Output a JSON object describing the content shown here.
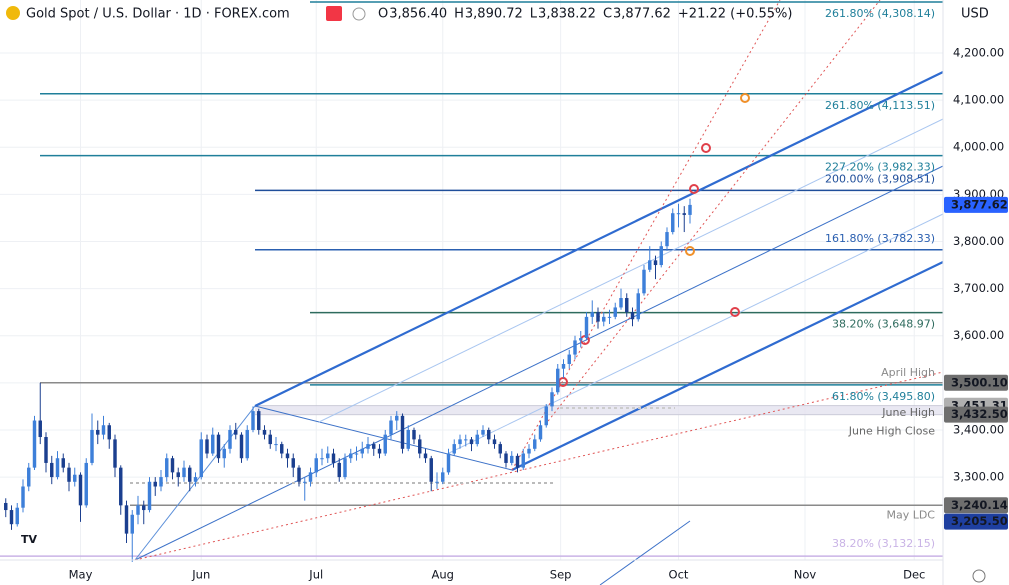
{
  "chart_data": {
    "type": "candlestick",
    "title": "Gold Spot / U.S. Dollar · 1D · FOREX.com",
    "currency": "USD",
    "ohlc_header": [
      {
        "key": "O",
        "value": "3,856.40"
      },
      {
        "key": "H",
        "value": "3,890.72"
      },
      {
        "key": "L",
        "value": "3,838.22"
      },
      {
        "key": "C",
        "value": "3,877.62"
      }
    ],
    "change": "+21.22 (+0.55%)",
    "up_color": "#3d7fd9",
    "down_color": "#1b3f8f",
    "ylim": [
      3124,
      4312.5
    ],
    "xlim": [
      -1,
      163
    ],
    "yticks": [
      {
        "value": 3300,
        "label": "3,300.00"
      },
      {
        "value": 3400,
        "label": "3,400.00"
      },
      {
        "value": 3500,
        "label": "3,500.00"
      },
      {
        "value": 3600,
        "label": "3,600.00"
      },
      {
        "value": 3700,
        "label": "3,700.00"
      },
      {
        "value": 3800,
        "label": "3,800.00"
      },
      {
        "value": 3900,
        "label": "3,900.00"
      },
      {
        "value": 4000,
        "label": "4,000.00"
      },
      {
        "value": 4100,
        "label": "4,100.00"
      },
      {
        "value": 4200,
        "label": "4,200.00"
      }
    ],
    "xticks": [
      {
        "value": 13,
        "label": "May"
      },
      {
        "value": 34,
        "label": "Jun"
      },
      {
        "value": 54,
        "label": "Jul"
      },
      {
        "value": 76,
        "label": "Aug"
      },
      {
        "value": 96.5,
        "label": "Sep"
      },
      {
        "value": 117,
        "label": "Oct"
      },
      {
        "value": 139,
        "label": "Nov"
      },
      {
        "value": 158,
        "label": "Dec"
      }
    ],
    "grid": true,
    "levels": [
      {
        "value": 4308.14,
        "label": "261.80% (4,308.14)",
        "color": "#1f7f9a"
      },
      {
        "value": 4113.51,
        "label": "261.80% (4,113.51)",
        "color": "#1f7f9a"
      },
      {
        "value": 3982.33,
        "label": "227.20% (3,982.33)",
        "color": "#1f7f9a"
      },
      {
        "value": 3908.51,
        "label": "200.00% (3,908.51)",
        "color": "#1f4e9a"
      },
      {
        "value": 3782.33,
        "label": "161.80% (3,782.33)",
        "color": "#2a5fb0"
      },
      {
        "value": 3648.97,
        "label": "38.20% (3,648.97)",
        "color": "#2e6b5e"
      },
      {
        "value": 3500.1,
        "label": "April High",
        "color": "#8a8a8a"
      },
      {
        "value": 3495.8,
        "label": "61.80% (3,495.80)",
        "color": "#1f7f9a"
      },
      {
        "value": 3451.31,
        "label": "June High",
        "color": "#b8b8c8"
      },
      {
        "value": 3432.5,
        "label": "June High Close",
        "color": "#b8b8c8"
      },
      {
        "value": 3240.14,
        "label": "May LDC",
        "color": "#8a8a8a"
      },
      {
        "value": 3132.15,
        "label": "38.20% (3,132.15)",
        "color": "#c9b3e6"
      }
    ],
    "price_badges": [
      {
        "value": 3877.62,
        "label": "3,877.62",
        "color": "#2962ff"
      },
      {
        "value": 3500.1,
        "label": "3,500.10",
        "color": "#6e6e6e"
      },
      {
        "value": 3451.31,
        "label": "3,451.31",
        "color": "#b0b0b0"
      },
      {
        "value": 3432.5,
        "label": "3,432.50",
        "color": "#6e6e6e"
      },
      {
        "value": 3240.14,
        "label": "3,240.14",
        "color": "#6e6e6e"
      },
      {
        "value": 3205.5,
        "label": "3,205.50",
        "color": "#1e3fa0"
      }
    ],
    "ohlc": [
      [
        3245,
        3255,
        3215,
        3230
      ],
      [
        3230,
        3240,
        3188,
        3200
      ],
      [
        3200,
        3245,
        3195,
        3235
      ],
      [
        3235,
        3295,
        3225,
        3280
      ],
      [
        3280,
        3330,
        3270,
        3320
      ],
      [
        3320,
        3430,
        3315,
        3420
      ],
      [
        3420,
        3500,
        3370,
        3385
      ],
      [
        3385,
        3395,
        3310,
        3330
      ],
      [
        3330,
        3345,
        3285,
        3300
      ],
      [
        3300,
        3355,
        3295,
        3340
      ],
      [
        3340,
        3350,
        3310,
        3320
      ],
      [
        3320,
        3330,
        3270,
        3290
      ],
      [
        3290,
        3320,
        3280,
        3305
      ],
      [
        3305,
        3310,
        3205,
        3240
      ],
      [
        3240,
        3340,
        3235,
        3330
      ],
      [
        3330,
        3435,
        3325,
        3400
      ],
      [
        3400,
        3420,
        3370,
        3390
      ],
      [
        3390,
        3430,
        3380,
        3410
      ],
      [
        3410,
        3415,
        3360,
        3380
      ],
      [
        3380,
        3390,
        3300,
        3320
      ],
      [
        3320,
        3325,
        3220,
        3240
      ],
      [
        3240,
        3250,
        3160,
        3180
      ],
      [
        3180,
        3230,
        3120,
        3220
      ],
      [
        3220,
        3260,
        3200,
        3240
      ],
      [
        3240,
        3250,
        3200,
        3230
      ],
      [
        3230,
        3300,
        3225,
        3290
      ],
      [
        3290,
        3300,
        3260,
        3280
      ],
      [
        3280,
        3315,
        3270,
        3300
      ],
      [
        3300,
        3350,
        3290,
        3340
      ],
      [
        3340,
        3345,
        3295,
        3310
      ],
      [
        3310,
        3320,
        3280,
        3300
      ],
      [
        3300,
        3335,
        3290,
        3320
      ],
      [
        3320,
        3325,
        3270,
        3290
      ],
      [
        3290,
        3310,
        3280,
        3300
      ],
      [
        3300,
        3395,
        3295,
        3380
      ],
      [
        3380,
        3390,
        3340,
        3350
      ],
      [
        3350,
        3405,
        3345,
        3390
      ],
      [
        3390,
        3395,
        3330,
        3340
      ],
      [
        3340,
        3370,
        3320,
        3360
      ],
      [
        3360,
        3410,
        3350,
        3400
      ],
      [
        3400,
        3415,
        3380,
        3390
      ],
      [
        3390,
        3395,
        3330,
        3340
      ],
      [
        3340,
        3410,
        3335,
        3400
      ],
      [
        3400,
        3450,
        3395,
        3440
      ],
      [
        3440,
        3445,
        3390,
        3400
      ],
      [
        3400,
        3410,
        3380,
        3390
      ],
      [
        3390,
        3400,
        3360,
        3370
      ],
      [
        3370,
        3385,
        3355,
        3370
      ],
      [
        3370,
        3375,
        3340,
        3350
      ],
      [
        3350,
        3360,
        3320,
        3340
      ],
      [
        3340,
        3350,
        3300,
        3320
      ],
      [
        3320,
        3325,
        3280,
        3290
      ],
      [
        3290,
        3300,
        3250,
        3290
      ],
      [
        3290,
        3320,
        3280,
        3310
      ],
      [
        3310,
        3350,
        3300,
        3340
      ],
      [
        3340,
        3360,
        3325,
        3340
      ],
      [
        3340,
        3365,
        3330,
        3350
      ],
      [
        3350,
        3360,
        3320,
        3330
      ],
      [
        3330,
        3340,
        3290,
        3300
      ],
      [
        3300,
        3350,
        3295,
        3340
      ],
      [
        3340,
        3360,
        3330,
        3350
      ],
      [
        3350,
        3365,
        3335,
        3350
      ],
      [
        3350,
        3375,
        3340,
        3360
      ],
      [
        3360,
        3385,
        3350,
        3370
      ],
      [
        3370,
        3375,
        3345,
        3360
      ],
      [
        3360,
        3370,
        3340,
        3350
      ],
      [
        3350,
        3400,
        3345,
        3390
      ],
      [
        3390,
        3430,
        3380,
        3420
      ],
      [
        3420,
        3440,
        3400,
        3430
      ],
      [
        3430,
        3435,
        3350,
        3360
      ],
      [
        3360,
        3410,
        3355,
        3400
      ],
      [
        3400,
        3405,
        3370,
        3380
      ],
      [
        3380,
        3390,
        3340,
        3350
      ],
      [
        3350,
        3360,
        3330,
        3340
      ],
      [
        3340,
        3345,
        3270,
        3290
      ],
      [
        3290,
        3310,
        3275,
        3290
      ],
      [
        3290,
        3320,
        3285,
        3310
      ],
      [
        3310,
        3360,
        3305,
        3350
      ],
      [
        3350,
        3380,
        3345,
        3370
      ],
      [
        3370,
        3390,
        3360,
        3380
      ],
      [
        3380,
        3390,
        3365,
        3380
      ],
      [
        3380,
        3385,
        3355,
        3370
      ],
      [
        3370,
        3400,
        3365,
        3390
      ],
      [
        3390,
        3410,
        3385,
        3400
      ],
      [
        3400,
        3405,
        3370,
        3380
      ],
      [
        3380,
        3390,
        3360,
        3370
      ],
      [
        3370,
        3375,
        3340,
        3350
      ],
      [
        3350,
        3355,
        3320,
        3330
      ],
      [
        3330,
        3355,
        3325,
        3345
      ],
      [
        3345,
        3350,
        3310,
        3320
      ],
      [
        3320,
        3360,
        3315,
        3350
      ],
      [
        3350,
        3370,
        3340,
        3360
      ],
      [
        3360,
        3390,
        3355,
        3380
      ],
      [
        3380,
        3420,
        3375,
        3410
      ],
      [
        3410,
        3455,
        3405,
        3450
      ],
      [
        3450,
        3490,
        3440,
        3480
      ],
      [
        3480,
        3540,
        3475,
        3530
      ],
      [
        3530,
        3550,
        3510,
        3540
      ],
      [
        3540,
        3570,
        3530,
        3560
      ],
      [
        3560,
        3600,
        3550,
        3590
      ],
      [
        3590,
        3610,
        3575,
        3595
      ],
      [
        3595,
        3650,
        3590,
        3640
      ],
      [
        3640,
        3675,
        3625,
        3650
      ],
      [
        3650,
        3660,
        3615,
        3630
      ],
      [
        3630,
        3650,
        3620,
        3640
      ],
      [
        3640,
        3655,
        3625,
        3640
      ],
      [
        3640,
        3670,
        3635,
        3660
      ],
      [
        3660,
        3700,
        3655,
        3680
      ],
      [
        3680,
        3690,
        3640,
        3650
      ],
      [
        3650,
        3660,
        3620,
        3635
      ],
      [
        3635,
        3700,
        3630,
        3690
      ],
      [
        3690,
        3750,
        3685,
        3740
      ],
      [
        3740,
        3790,
        3735,
        3760
      ],
      [
        3760,
        3770,
        3720,
        3750
      ],
      [
        3750,
        3800,
        3745,
        3790
      ],
      [
        3790,
        3830,
        3780,
        3820
      ],
      [
        3820,
        3870,
        3815,
        3860
      ],
      [
        3860,
        3880,
        3830,
        3860
      ],
      [
        3860,
        3875,
        3820,
        3856.4
      ],
      [
        3856.4,
        3890.72,
        3838.22,
        3877.62
      ]
    ]
  }
}
